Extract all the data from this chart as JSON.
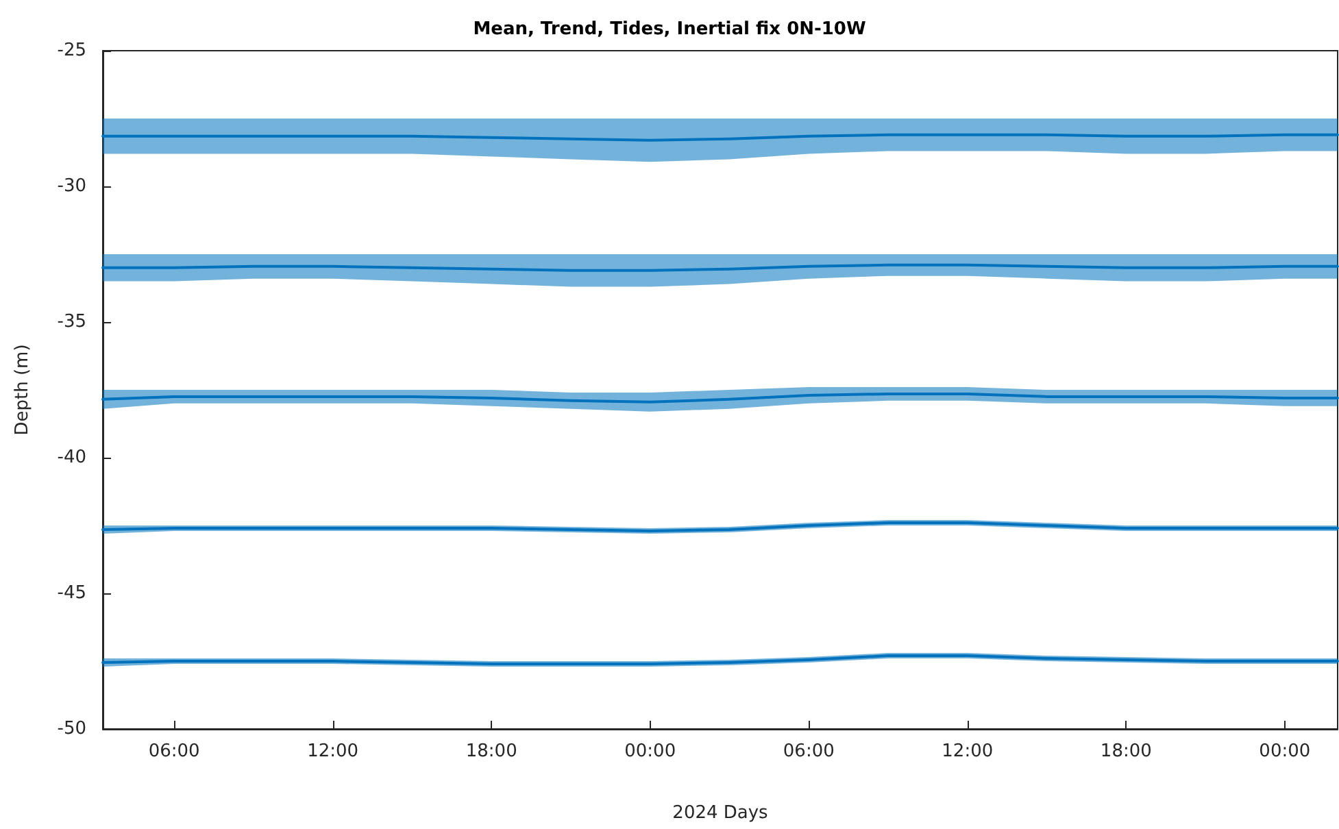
{
  "chart_data": {
    "type": "line",
    "title": "Mean, Trend, Tides, Inertial fix 0N-10W",
    "xlabel": "2024 Days",
    "ylabel": "Depth (m)",
    "x": [
      "2024-01-01T03:18",
      "2024-01-01T06:00",
      "2024-01-01T09:00",
      "2024-01-01T12:00",
      "2024-01-01T15:00",
      "2024-01-01T18:00",
      "2024-01-01T21:00",
      "2024-01-02T00:00",
      "2024-01-02T03:00",
      "2024-01-02T06:00",
      "2024-01-02T09:00",
      "2024-01-02T12:00",
      "2024-01-02T15:00",
      "2024-01-02T18:00",
      "2024-01-02T21:00",
      "2024-01-03T00:00",
      "2024-01-03T02:00"
    ],
    "xlim": [
      "2024-01-01T03:18",
      "2024-01-03T02:00"
    ],
    "xticks": [
      {
        "value": "2024-01-01T06:00",
        "label": "06:00"
      },
      {
        "value": "2024-01-01T12:00",
        "label": "12:00"
      },
      {
        "value": "2024-01-01T18:00",
        "label": "18:00"
      },
      {
        "value": "2024-01-02T00:00",
        "label": "00:00"
      },
      {
        "value": "2024-01-02T06:00",
        "label": "06:00"
      },
      {
        "value": "2024-01-02T12:00",
        "label": "12:00"
      },
      {
        "value": "2024-01-02T18:00",
        "label": "18:00"
      },
      {
        "value": "2024-01-03T00:00",
        "label": "00:00"
      }
    ],
    "ylim": [
      -50,
      -25
    ],
    "yticks": [
      -50,
      -45,
      -40,
      -35,
      -30,
      -25
    ],
    "grid": false,
    "marker": "none",
    "line_style": "solid",
    "series": [
      {
        "color": "#0072bd",
        "values": [
          -28.15,
          -28.15,
          -28.15,
          -28.15,
          -28.15,
          -28.2,
          -28.25,
          -28.3,
          -28.25,
          -28.15,
          -28.1,
          -28.1,
          -28.1,
          -28.15,
          -28.15,
          -28.1,
          -28.1
        ],
        "upper": [
          -27.5,
          -27.5,
          -27.5,
          -27.5,
          -27.5,
          -27.5,
          -27.5,
          -27.5,
          -27.5,
          -27.5,
          -27.5,
          -27.5,
          -27.5,
          -27.5,
          -27.5,
          -27.5,
          -27.5
        ],
        "lower": [
          -28.8,
          -28.8,
          -28.8,
          -28.8,
          -28.8,
          -28.9,
          -29.0,
          -29.1,
          -29.0,
          -28.8,
          -28.7,
          -28.7,
          -28.7,
          -28.8,
          -28.8,
          -28.7,
          -28.7
        ]
      },
      {
        "color": "#0072bd",
        "values": [
          -33.0,
          -33.0,
          -32.95,
          -32.95,
          -33.0,
          -33.05,
          -33.1,
          -33.1,
          -33.05,
          -32.95,
          -32.9,
          -32.9,
          -32.95,
          -33.0,
          -33.0,
          -32.95,
          -32.95
        ],
        "upper": [
          -32.5,
          -32.5,
          -32.5,
          -32.5,
          -32.5,
          -32.5,
          -32.5,
          -32.5,
          -32.5,
          -32.5,
          -32.5,
          -32.5,
          -32.5,
          -32.5,
          -32.5,
          -32.5,
          -32.5
        ],
        "lower": [
          -33.5,
          -33.5,
          -33.4,
          -33.4,
          -33.5,
          -33.6,
          -33.7,
          -33.7,
          -33.6,
          -33.4,
          -33.3,
          -33.3,
          -33.4,
          -33.5,
          -33.5,
          -33.4,
          -33.4
        ]
      },
      {
        "color": "#0072bd",
        "values": [
          -37.85,
          -37.75,
          -37.75,
          -37.75,
          -37.75,
          -37.8,
          -37.9,
          -37.95,
          -37.85,
          -37.7,
          -37.65,
          -37.65,
          -37.75,
          -37.75,
          -37.75,
          -37.8,
          -37.8
        ],
        "upper": [
          -37.5,
          -37.5,
          -37.5,
          -37.5,
          -37.5,
          -37.5,
          -37.6,
          -37.6,
          -37.5,
          -37.4,
          -37.4,
          -37.4,
          -37.5,
          -37.5,
          -37.5,
          -37.5,
          -37.5
        ],
        "lower": [
          -38.2,
          -38.0,
          -38.0,
          -38.0,
          -38.0,
          -38.1,
          -38.2,
          -38.3,
          -38.2,
          -38.0,
          -37.9,
          -37.9,
          -38.0,
          -38.0,
          -38.0,
          -38.1,
          -38.1
        ]
      },
      {
        "color": "#0072bd",
        "values": [
          -42.65,
          -42.6,
          -42.6,
          -42.6,
          -42.6,
          -42.6,
          -42.65,
          -42.7,
          -42.65,
          -42.5,
          -42.4,
          -42.4,
          -42.5,
          -42.6,
          -42.6,
          -42.6,
          -42.6
        ],
        "upper": [
          -42.5,
          -42.5,
          -42.5,
          -42.5,
          -42.5,
          -42.5,
          -42.55,
          -42.6,
          -42.55,
          -42.4,
          -42.3,
          -42.3,
          -42.4,
          -42.5,
          -42.5,
          -42.5,
          -42.5
        ],
        "lower": [
          -42.8,
          -42.7,
          -42.7,
          -42.7,
          -42.7,
          -42.7,
          -42.75,
          -42.8,
          -42.75,
          -42.6,
          -42.5,
          -42.5,
          -42.6,
          -42.7,
          -42.7,
          -42.7,
          -42.7
        ]
      },
      {
        "color": "#0072bd",
        "values": [
          -47.55,
          -47.5,
          -47.5,
          -47.5,
          -47.55,
          -47.6,
          -47.6,
          -47.6,
          -47.55,
          -47.45,
          -47.3,
          -47.3,
          -47.4,
          -47.45,
          -47.5,
          -47.5,
          -47.5
        ],
        "upper": [
          -47.4,
          -47.4,
          -47.4,
          -47.4,
          -47.45,
          -47.5,
          -47.5,
          -47.5,
          -47.45,
          -47.35,
          -47.2,
          -47.2,
          -47.3,
          -47.35,
          -47.4,
          -47.4,
          -47.4
        ],
        "lower": [
          -47.7,
          -47.6,
          -47.6,
          -47.6,
          -47.65,
          -47.7,
          -47.7,
          -47.7,
          -47.65,
          -47.55,
          -47.4,
          -47.4,
          -47.5,
          -47.55,
          -47.6,
          -47.6,
          -47.6
        ]
      }
    ]
  }
}
